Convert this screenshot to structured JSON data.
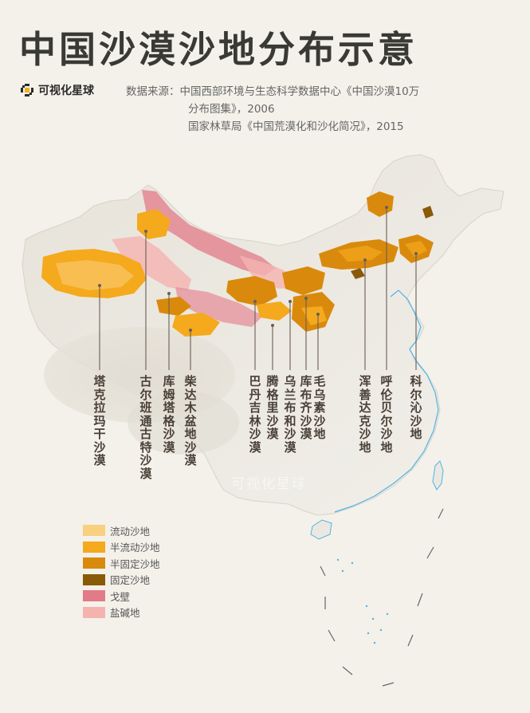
{
  "title": "中国沙漠沙地分布示意",
  "brand": {
    "name": "可视化星球",
    "logo_icon": "pixel-logo-icon"
  },
  "source": {
    "label": "数据来源：",
    "line1": "中国西部环境与生态科学数据中心《中国沙漠10万",
    "line2": "分布图集》，2006",
    "line3": "国家林草局《中国荒漠化和沙化简况》，2015"
  },
  "deserts": [
    {
      "name": "塔克拉玛干沙漠"
    },
    {
      "name": "古尔班通古特沙漠"
    },
    {
      "name": "库姆塔格沙漠"
    },
    {
      "name": "柴达木盆地沙漠"
    },
    {
      "name": "巴丹吉林沙漠"
    },
    {
      "name": "腾格里沙漠"
    },
    {
      "name": "乌兰布和沙漠"
    },
    {
      "name": "库布齐沙漠"
    },
    {
      "name": "毛乌素沙地"
    },
    {
      "name": "浑善达克沙地"
    },
    {
      "name": "呼伦贝尔沙地"
    },
    {
      "name": "科尔沁沙地"
    }
  ],
  "legend": [
    {
      "label": "流动沙地",
      "color": "#f9d080"
    },
    {
      "label": "半流动沙地",
      "color": "#f5a91c"
    },
    {
      "label": "半固定沙地",
      "color": "#d98a0c"
    },
    {
      "label": "固定沙地",
      "color": "#8a5a08"
    },
    {
      "label": "戈壁",
      "color": "#e27a88"
    },
    {
      "label": "盐碱地",
      "color": "#f5b3b0"
    }
  ],
  "watermark": "可视化星球"
}
